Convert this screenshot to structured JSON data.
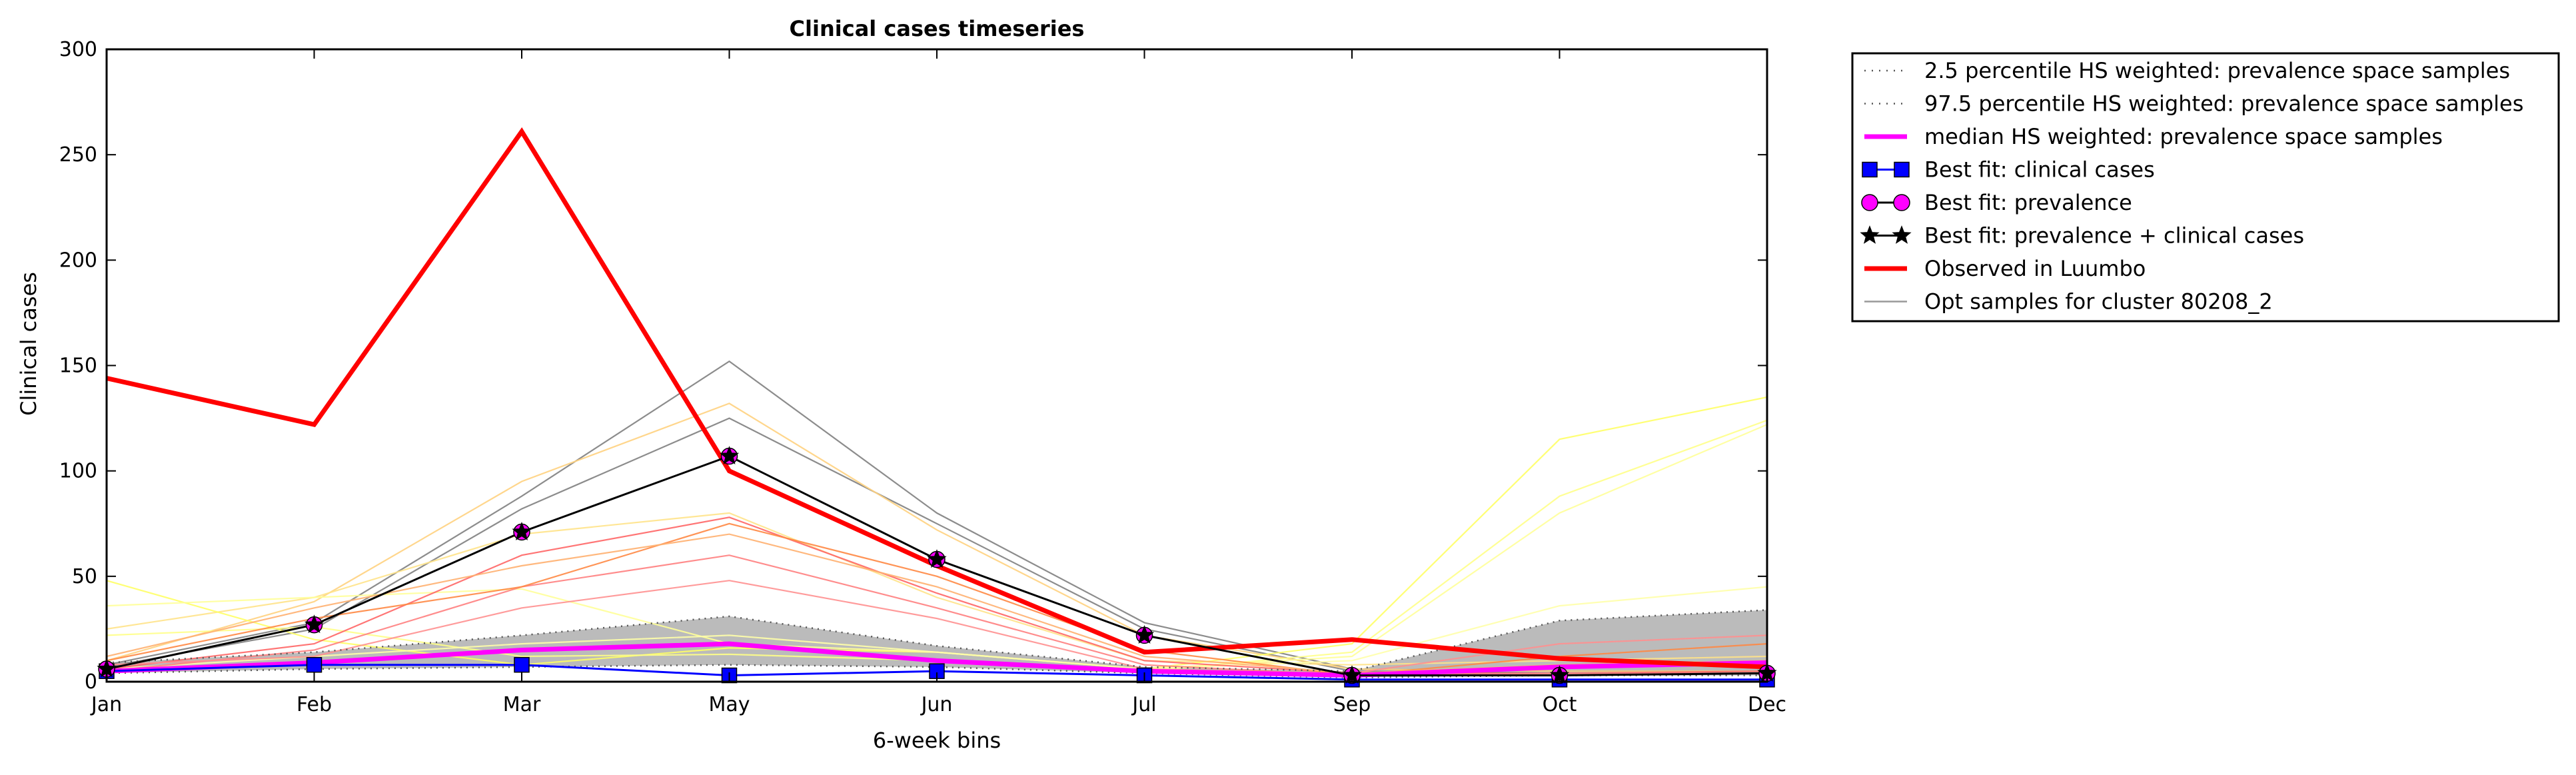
{
  "chart_data": {
    "type": "line",
    "title": "Clinical cases timeseries",
    "xlabel": "6-week bins",
    "ylabel": "Clinical cases",
    "categories": [
      "Jan",
      "Feb",
      "Mar",
      "May",
      "Jun",
      "Jul",
      "Sep",
      "Oct",
      "Dec"
    ],
    "ylim": [
      0,
      300
    ],
    "yticks": [
      0,
      50,
      100,
      150,
      200,
      250,
      300
    ],
    "grid": false,
    "legend_position": "outside-right",
    "band": {
      "lower": [
        4,
        6,
        7,
        8,
        7,
        4,
        2,
        3,
        3
      ],
      "upper": [
        9,
        14,
        22,
        31,
        17,
        7,
        5,
        29,
        34
      ],
      "color": "#bbbbbb"
    },
    "samples": [
      {
        "color": "#808080",
        "values": [
          8,
          28,
          88,
          152,
          80,
          28,
          6,
          5,
          5
        ]
      },
      {
        "color": "#808080",
        "values": [
          7,
          25,
          82,
          125,
          75,
          25,
          5,
          4,
          4
        ]
      },
      {
        "color": "#ffd27f",
        "values": [
          10,
          38,
          95,
          132,
          72,
          22,
          6,
          5,
          5
        ]
      },
      {
        "color": "#ffe38a",
        "values": [
          25,
          40,
          70,
          80,
          40,
          10,
          8,
          10,
          12
        ]
      },
      {
        "color": "#ffff66",
        "values": [
          48,
          20,
          8,
          16,
          14,
          6,
          18,
          115,
          135
        ]
      },
      {
        "color": "#ffff88",
        "values": [
          22,
          26,
          12,
          13,
          10,
          5,
          14,
          88,
          124
        ]
      },
      {
        "color": "#ffff99",
        "values": [
          36,
          40,
          44,
          18,
          14,
          6,
          12,
          80,
          122
        ]
      },
      {
        "color": "#ffffaa",
        "values": [
          6,
          12,
          18,
          22,
          14,
          6,
          10,
          36,
          45
        ]
      },
      {
        "color": "#ff6666",
        "values": [
          6,
          18,
          60,
          78,
          42,
          10,
          4,
          4,
          5
        ]
      },
      {
        "color": "#ff7f7f",
        "values": [
          5,
          15,
          45,
          60,
          35,
          8,
          3,
          4,
          4
        ]
      },
      {
        "color": "#ff9090",
        "values": [
          8,
          12,
          35,
          48,
          30,
          6,
          4,
          18,
          22
        ]
      },
      {
        "color": "#ff8844",
        "values": [
          10,
          30,
          45,
          75,
          50,
          15,
          3,
          12,
          18
        ]
      },
      {
        "color": "#ffb070",
        "values": [
          12,
          35,
          55,
          70,
          45,
          12,
          4,
          8,
          10
        ]
      }
    ],
    "series": [
      {
        "name": "2.5 percentile HS weighted: prevalence space samples",
        "color": "#555555",
        "style": "dotted",
        "values": [
          4,
          6,
          7,
          8,
          7,
          4,
          2,
          3,
          3
        ]
      },
      {
        "name": "97.5 percentile HS weighted: prevalence space samples",
        "color": "#555555",
        "style": "dotted",
        "values": [
          9,
          14,
          22,
          31,
          17,
          7,
          5,
          29,
          34
        ]
      },
      {
        "name": "median HS weighted: prevalence space samples",
        "color": "#ff00ff",
        "style": "solid",
        "values": [
          5,
          9,
          15,
          18,
          10,
          5,
          3,
          7,
          9
        ]
      },
      {
        "name": "Best fit: clinical cases",
        "color": "#0000ff",
        "style": "solid",
        "marker": "square",
        "values": [
          5,
          8,
          8,
          3,
          5,
          3,
          1,
          1,
          1
        ]
      },
      {
        "name": "Best fit: prevalence",
        "color": "#ff00ff",
        "style": "solid",
        "marker": "circle",
        "values": [
          6,
          27,
          71,
          107,
          58,
          22,
          3,
          3,
          4
        ]
      },
      {
        "name": "Best fit: prevalence + clinical cases",
        "color": "#000000",
        "style": "solid",
        "marker": "star",
        "values": [
          6,
          27,
          71,
          107,
          58,
          22,
          3,
          3,
          4
        ]
      },
      {
        "name": "Observed in Luumbo",
        "color": "#ff0000",
        "style": "solid",
        "values": [
          144,
          122,
          261,
          100,
          55,
          14,
          20,
          11,
          7
        ]
      },
      {
        "name": "Opt samples for cluster 80208_2",
        "color": "#999999",
        "style": "solid",
        "values": null
      }
    ]
  }
}
